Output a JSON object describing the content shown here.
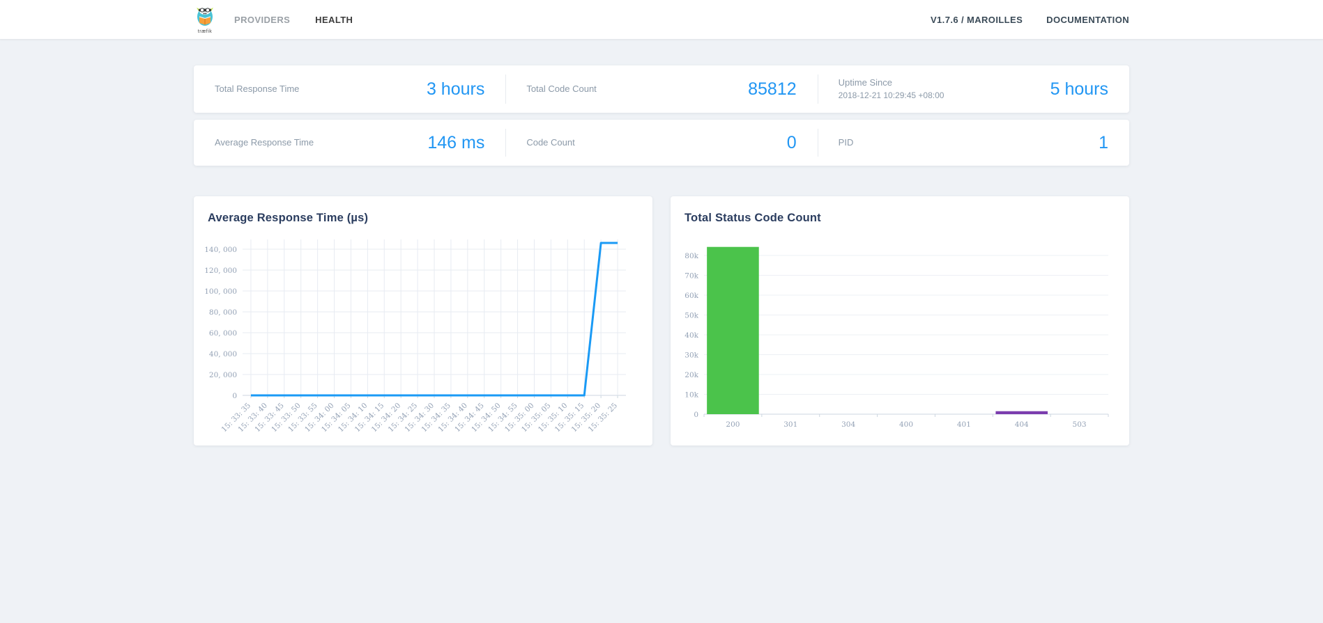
{
  "navbar": {
    "logo": {
      "text": "træfik"
    },
    "items": [
      {
        "label": "PROVIDERS",
        "active": false
      },
      {
        "label": "HEALTH",
        "active": true
      }
    ],
    "version_label": "V1.7.6 / MAROILLES",
    "documentation_label": "DOCUMENTATION"
  },
  "stats": {
    "row1": [
      {
        "label": "Total Response Time",
        "value": "3 hours"
      },
      {
        "label": "Total Code Count",
        "value": "85812"
      },
      {
        "label": "Uptime Since",
        "sublabel": "2018-12-21 10:29:45 +08:00",
        "value": "5 hours"
      }
    ],
    "row2": [
      {
        "label": "Average Response Time",
        "value": "146 ms"
      },
      {
        "label": "Code Count",
        "value": "0"
      },
      {
        "label": "PID",
        "value": "1"
      }
    ]
  },
  "chart_data": [
    {
      "type": "line",
      "title": "Average Response Time (µs)",
      "categories": [
        "15:33:35",
        "15:33:40",
        "15:33:45",
        "15:33:50",
        "15:33:55",
        "15:34:00",
        "15:34:05",
        "15:34:10",
        "15:34:15",
        "15:34:20",
        "15:34:25",
        "15:34:30",
        "15:34:35",
        "15:34:40",
        "15:34:45",
        "15:34:50",
        "15:34:55",
        "15:35:00",
        "15:35:05",
        "15:35:10",
        "15:35:15",
        "15:35:20",
        "15:35:25"
      ],
      "values": [
        0,
        0,
        0,
        0,
        0,
        0,
        0,
        0,
        0,
        0,
        0,
        0,
        0,
        0,
        0,
        0,
        0,
        0,
        0,
        0,
        0,
        146000,
        146000
      ],
      "xlabel": "",
      "ylabel": "",
      "ylim": [
        0,
        140000
      ],
      "y_ticks": [
        0,
        20000,
        40000,
        60000,
        80000,
        100000,
        120000,
        140000
      ],
      "y_tick_labels": [
        "0",
        "20,000",
        "40,000",
        "60,000",
        "80,000",
        "100,000",
        "120,000",
        "140,000"
      ],
      "grid": true,
      "x_label_rotation": -45,
      "line_color": "#1a9af5",
      "legend": "none"
    },
    {
      "type": "bar",
      "title": "Total Status Code Count",
      "categories": [
        "200",
        "301",
        "304",
        "400",
        "401",
        "404",
        "503"
      ],
      "values": [
        84312,
        0,
        0,
        0,
        0,
        1500,
        0
      ],
      "bar_colors": [
        "#4bc34b",
        "#4bc34b",
        "#4bc34b",
        "#4bc34b",
        "#4bc34b",
        "#7b3dae",
        "#4bc34b"
      ],
      "xlabel": "",
      "ylabel": "",
      "ylim": [
        0,
        80000
      ],
      "y_ticks": [
        0,
        10000,
        20000,
        30000,
        40000,
        50000,
        60000,
        70000,
        80000
      ],
      "y_tick_labels": [
        "0",
        "10k",
        "20k",
        "30k",
        "40k",
        "50k",
        "60k",
        "70k",
        "80k"
      ],
      "grid": true,
      "legend": "none"
    }
  ],
  "colors": {
    "accent_blue": "#2196f3",
    "line_blue": "#1a9af5",
    "bar_green": "#4bc34b",
    "bar_purple": "#7b3dae",
    "page_bg": "#eff2f6"
  }
}
